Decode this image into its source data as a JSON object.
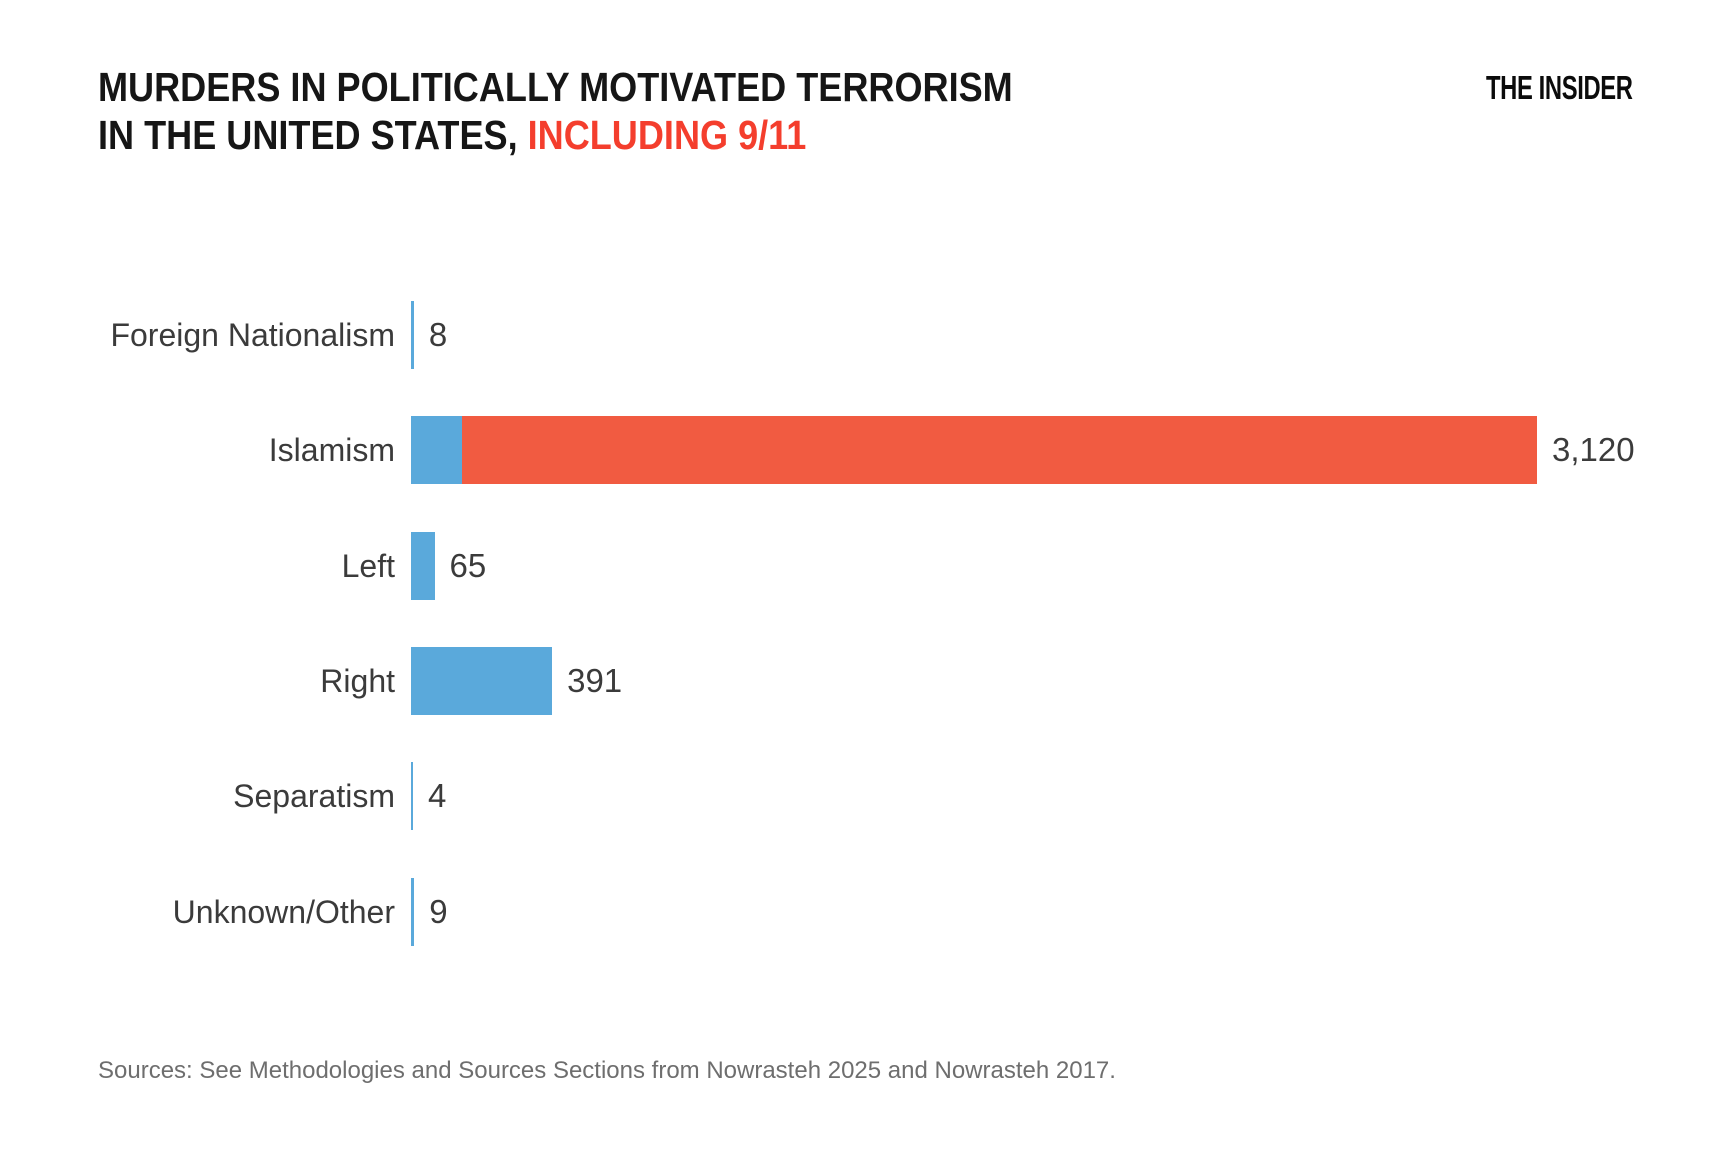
{
  "brand": {
    "logo_text": "THE INSIDER"
  },
  "header": {
    "title_line1": "MURDERS IN POLITICALLY MOTIVATED TERRORISM",
    "title_line2_black": "IN THE UNITED STATES, ",
    "title_line2_red": "INCLUDING 9/11"
  },
  "chart_data": {
    "type": "bar",
    "orientation": "horizontal",
    "title": "MURDERS IN POLITICALLY MOTIVATED TERRORISM IN THE UNITED STATES, INCLUDING 9/11",
    "categories": [
      "Foreign Nationalism",
      "Islamism",
      "Left",
      "Right",
      "Separatism",
      "Unknown/Other"
    ],
    "values": [
      8,
      3120,
      65,
      391,
      4,
      9
    ],
    "value_labels": [
      "8",
      "3,120",
      "65",
      "391",
      "4",
      "9"
    ],
    "islamism_blue_segment": 141,
    "islamism_red_segment": 2979,
    "xlim": [
      0,
      3120
    ],
    "grid": false,
    "legend": false,
    "colors": {
      "bar_blue": "#5AA9DB",
      "bar_red": "#F15B41"
    }
  },
  "footer": {
    "sources": "Sources: See Methodologies and Sources Sections from Nowrasteh 2025 and Nowrasteh 2017."
  },
  "colors": {
    "title_red": "#F43E2D",
    "text_dark": "#3B3B3B",
    "text_gray": "#6E6E6E"
  }
}
